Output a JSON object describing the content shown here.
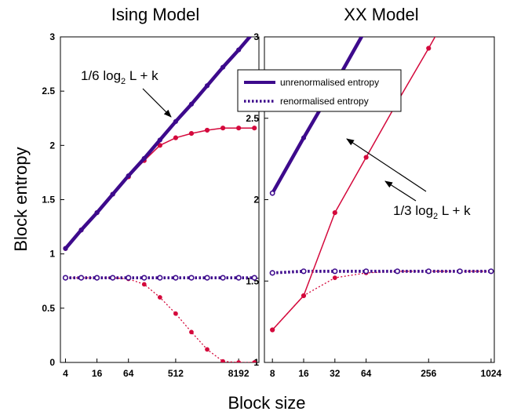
{
  "figure": {
    "xlabel": "Block size",
    "ylabel": "Block entropy"
  },
  "legend": {
    "items": [
      {
        "label": "unrenormalised entropy",
        "style": "solid",
        "color": "#3d0a8c"
      },
      {
        "label": "renormalised entropy",
        "style": "dotted",
        "color": "#3d0a8c"
      }
    ]
  },
  "colors": {
    "unrenormalised": "#3d0a8c",
    "renormalised": "#d4093c"
  },
  "chart_data": [
    {
      "type": "line",
      "title": "Ising Model",
      "x_scale": "log2",
      "x_ticks": [
        4,
        16,
        64,
        512,
        8192
      ],
      "x_tick_labels": [
        "4",
        "16",
        "64",
        "512",
        "8192"
      ],
      "xlim": [
        3.2,
        20000
      ],
      "ylim": [
        0,
        3
      ],
      "y_ticks": [
        0,
        0.5,
        1,
        1.5,
        2,
        2.5,
        3
      ],
      "y_tick_labels": [
        "0",
        "0.5",
        "1",
        "1.5",
        "2",
        "2.5",
        "3"
      ],
      "annotation": {
        "text": "1/6 log",
        "sub": "2",
        "tail": " L + k"
      },
      "series": [
        {
          "style": "thick-solid",
          "color": "#3d0a8c",
          "x": [
            4,
            8,
            16,
            32,
            64,
            128,
            256,
            512,
            1024,
            2048,
            4096,
            8192,
            16384
          ],
          "y": [
            1.05,
            1.22,
            1.38,
            1.55,
            1.72,
            1.88,
            2.05,
            2.22,
            2.38,
            2.55,
            2.72,
            2.88,
            3.05
          ]
        },
        {
          "style": "solid",
          "color": "#d4093c",
          "x": [
            4,
            8,
            16,
            32,
            64,
            128,
            256,
            512,
            1024,
            2048,
            4096,
            8192,
            16384
          ],
          "y": [
            1.05,
            1.22,
            1.38,
            1.55,
            1.71,
            1.86,
            2.0,
            2.07,
            2.11,
            2.14,
            2.16,
            2.16,
            2.16
          ]
        },
        {
          "style": "thick-dotted",
          "color": "#3d0a8c",
          "x": [
            4,
            8,
            16,
            32,
            64,
            128,
            256,
            512,
            1024,
            2048,
            4096,
            8192,
            16384
          ],
          "y": [
            0.78,
            0.78,
            0.78,
            0.78,
            0.78,
            0.78,
            0.78,
            0.78,
            0.78,
            0.78,
            0.78,
            0.78,
            0.78
          ]
        },
        {
          "style": "dotted",
          "color": "#d4093c",
          "x": [
            4,
            8,
            16,
            32,
            64,
            128,
            256,
            512,
            1024,
            2048,
            4096,
            8192,
            16384
          ],
          "y": [
            0.78,
            0.78,
            0.78,
            0.78,
            0.77,
            0.72,
            0.6,
            0.45,
            0.28,
            0.12,
            0.01,
            0.0,
            0.0
          ]
        }
      ]
    },
    {
      "type": "line",
      "title": "XX Model",
      "x_scale": "log2",
      "x_ticks": [
        8,
        16,
        32,
        64,
        256,
        1024
      ],
      "x_tick_labels": [
        "8",
        "16",
        "32",
        "64",
        "256",
        "1024"
      ],
      "xlim": [
        6.7,
        1100
      ],
      "ylim": [
        1,
        3
      ],
      "y_ticks": [
        1,
        1.5,
        2,
        2.5,
        3
      ],
      "y_tick_labels": [
        "1",
        "1.5",
        "2",
        "2.5",
        "3"
      ],
      "annotation": {
        "text": "1/3 log",
        "sub": "2",
        "tail": " L + k"
      },
      "series": [
        {
          "style": "thick-solid",
          "color": "#3d0a8c",
          "x": [
            8,
            16,
            32,
            64
          ],
          "y": [
            2.04,
            2.38,
            2.71,
            3.05
          ]
        },
        {
          "style": "solid",
          "color": "#d4093c",
          "x": [
            8,
            16,
            32,
            64,
            128,
            256,
            512
          ],
          "y": [
            1.2,
            1.41,
            1.92,
            2.26,
            2.6,
            2.93,
            3.27
          ]
        },
        {
          "style": "thick-dotted",
          "color": "#3d0a8c",
          "x": [
            8,
            16,
            32,
            64,
            128,
            256,
            512,
            1024
          ],
          "y": [
            1.55,
            1.56,
            1.56,
            1.56,
            1.56,
            1.56,
            1.56,
            1.56
          ]
        },
        {
          "style": "dotted",
          "color": "#d4093c",
          "x": [
            8,
            16,
            32,
            64,
            128,
            256,
            512,
            1024
          ],
          "y": [
            1.2,
            1.41,
            1.52,
            1.55,
            1.56,
            1.56,
            1.56,
            1.56
          ]
        }
      ]
    }
  ]
}
